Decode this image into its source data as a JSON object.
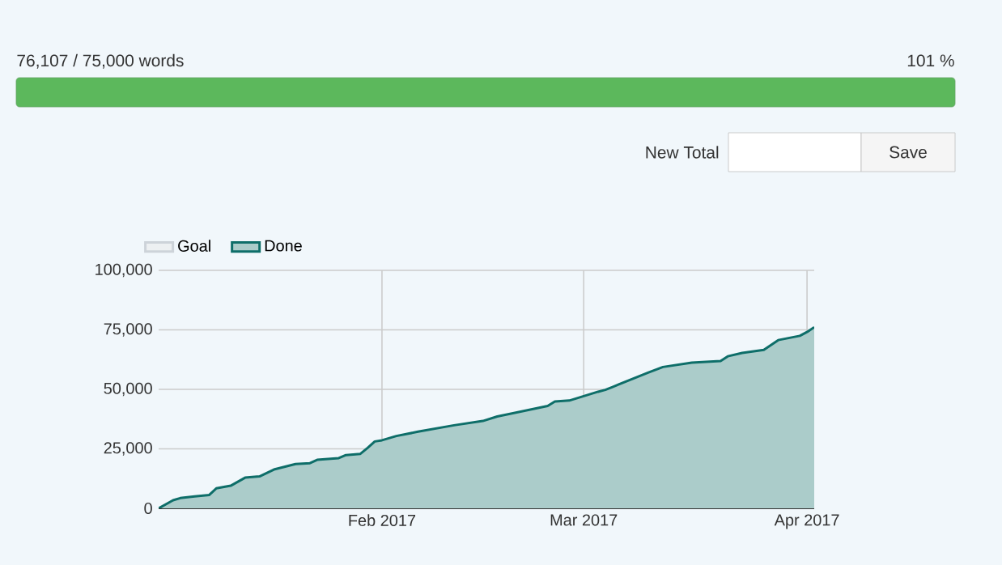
{
  "chart_data": [
    {
      "type": "other",
      "annotations": [
        "76,107 / 75,000 words",
        "101 %",
        "New Total",
        "Save"
      ]
    },
    {
      "type": "area",
      "x": [
        "2017-01-01",
        "2017-01-03",
        "2017-01-04",
        "2017-01-06",
        "2017-01-08",
        "2017-01-09",
        "2017-01-11",
        "2017-01-13",
        "2017-01-15",
        "2017-01-17",
        "2017-01-20",
        "2017-01-22",
        "2017-01-23",
        "2017-01-26",
        "2017-01-27",
        "2017-01-29",
        "2017-01-30",
        "2017-01-31",
        "2017-02-01",
        "2017-02-03",
        "2017-02-06",
        "2017-02-11",
        "2017-02-15",
        "2017-02-17",
        "2017-02-24",
        "2017-02-25",
        "2017-02-27",
        "2017-03-03",
        "2017-03-04",
        "2017-03-05",
        "2017-03-10",
        "2017-03-12",
        "2017-03-16",
        "2017-03-20",
        "2017-03-21",
        "2017-03-23",
        "2017-03-26",
        "2017-03-28",
        "2017-03-31",
        "2017-04-01",
        "2017-04-02"
      ],
      "series": [
        {
          "name": "Goal",
          "color": "#cdd3d9",
          "values": [
            null,
            null,
            null,
            null,
            null,
            null,
            null,
            null,
            null,
            null,
            null,
            null,
            null,
            null,
            null,
            null,
            null,
            null,
            null,
            null,
            null,
            null,
            null,
            null,
            null,
            null,
            null,
            null,
            null,
            null,
            null,
            null,
            null,
            null,
            null,
            null,
            null,
            null,
            null,
            null,
            null
          ]
        },
        {
          "name": "Done",
          "color": "#0e6e69",
          "values": [
            0,
            3400,
            4300,
            5000,
            5600,
            8400,
            9500,
            12900,
            13400,
            16300,
            18600,
            19000,
            20400,
            21100,
            22400,
            22900,
            25400,
            28100,
            28600,
            30400,
            32200,
            34900,
            36700,
            38600,
            43000,
            44900,
            45300,
            49000,
            49800,
            51000,
            57100,
            59400,
            61200,
            61900,
            63900,
            65300,
            66600,
            70700,
            72500,
            74100,
            76100
          ]
        }
      ],
      "xlim": [
        "2017-01-01",
        "2017-04-02"
      ],
      "xticks": [
        {
          "value": "2017-02-01",
          "label": "Feb 2017"
        },
        {
          "value": "2017-03-01",
          "label": "Mar 2017"
        },
        {
          "value": "2017-04-01",
          "label": "Apr 2017"
        }
      ],
      "ylim": [
        0,
        100000
      ],
      "yticks": [
        {
          "value": 0,
          "label": "0"
        },
        {
          "value": 25000,
          "label": "25,000"
        },
        {
          "value": 50000,
          "label": "50,000"
        },
        {
          "value": 75000,
          "label": "75,000"
        },
        {
          "value": 100000,
          "label": "100,000"
        }
      ],
      "grid": true,
      "legend": "top left"
    }
  ]
}
